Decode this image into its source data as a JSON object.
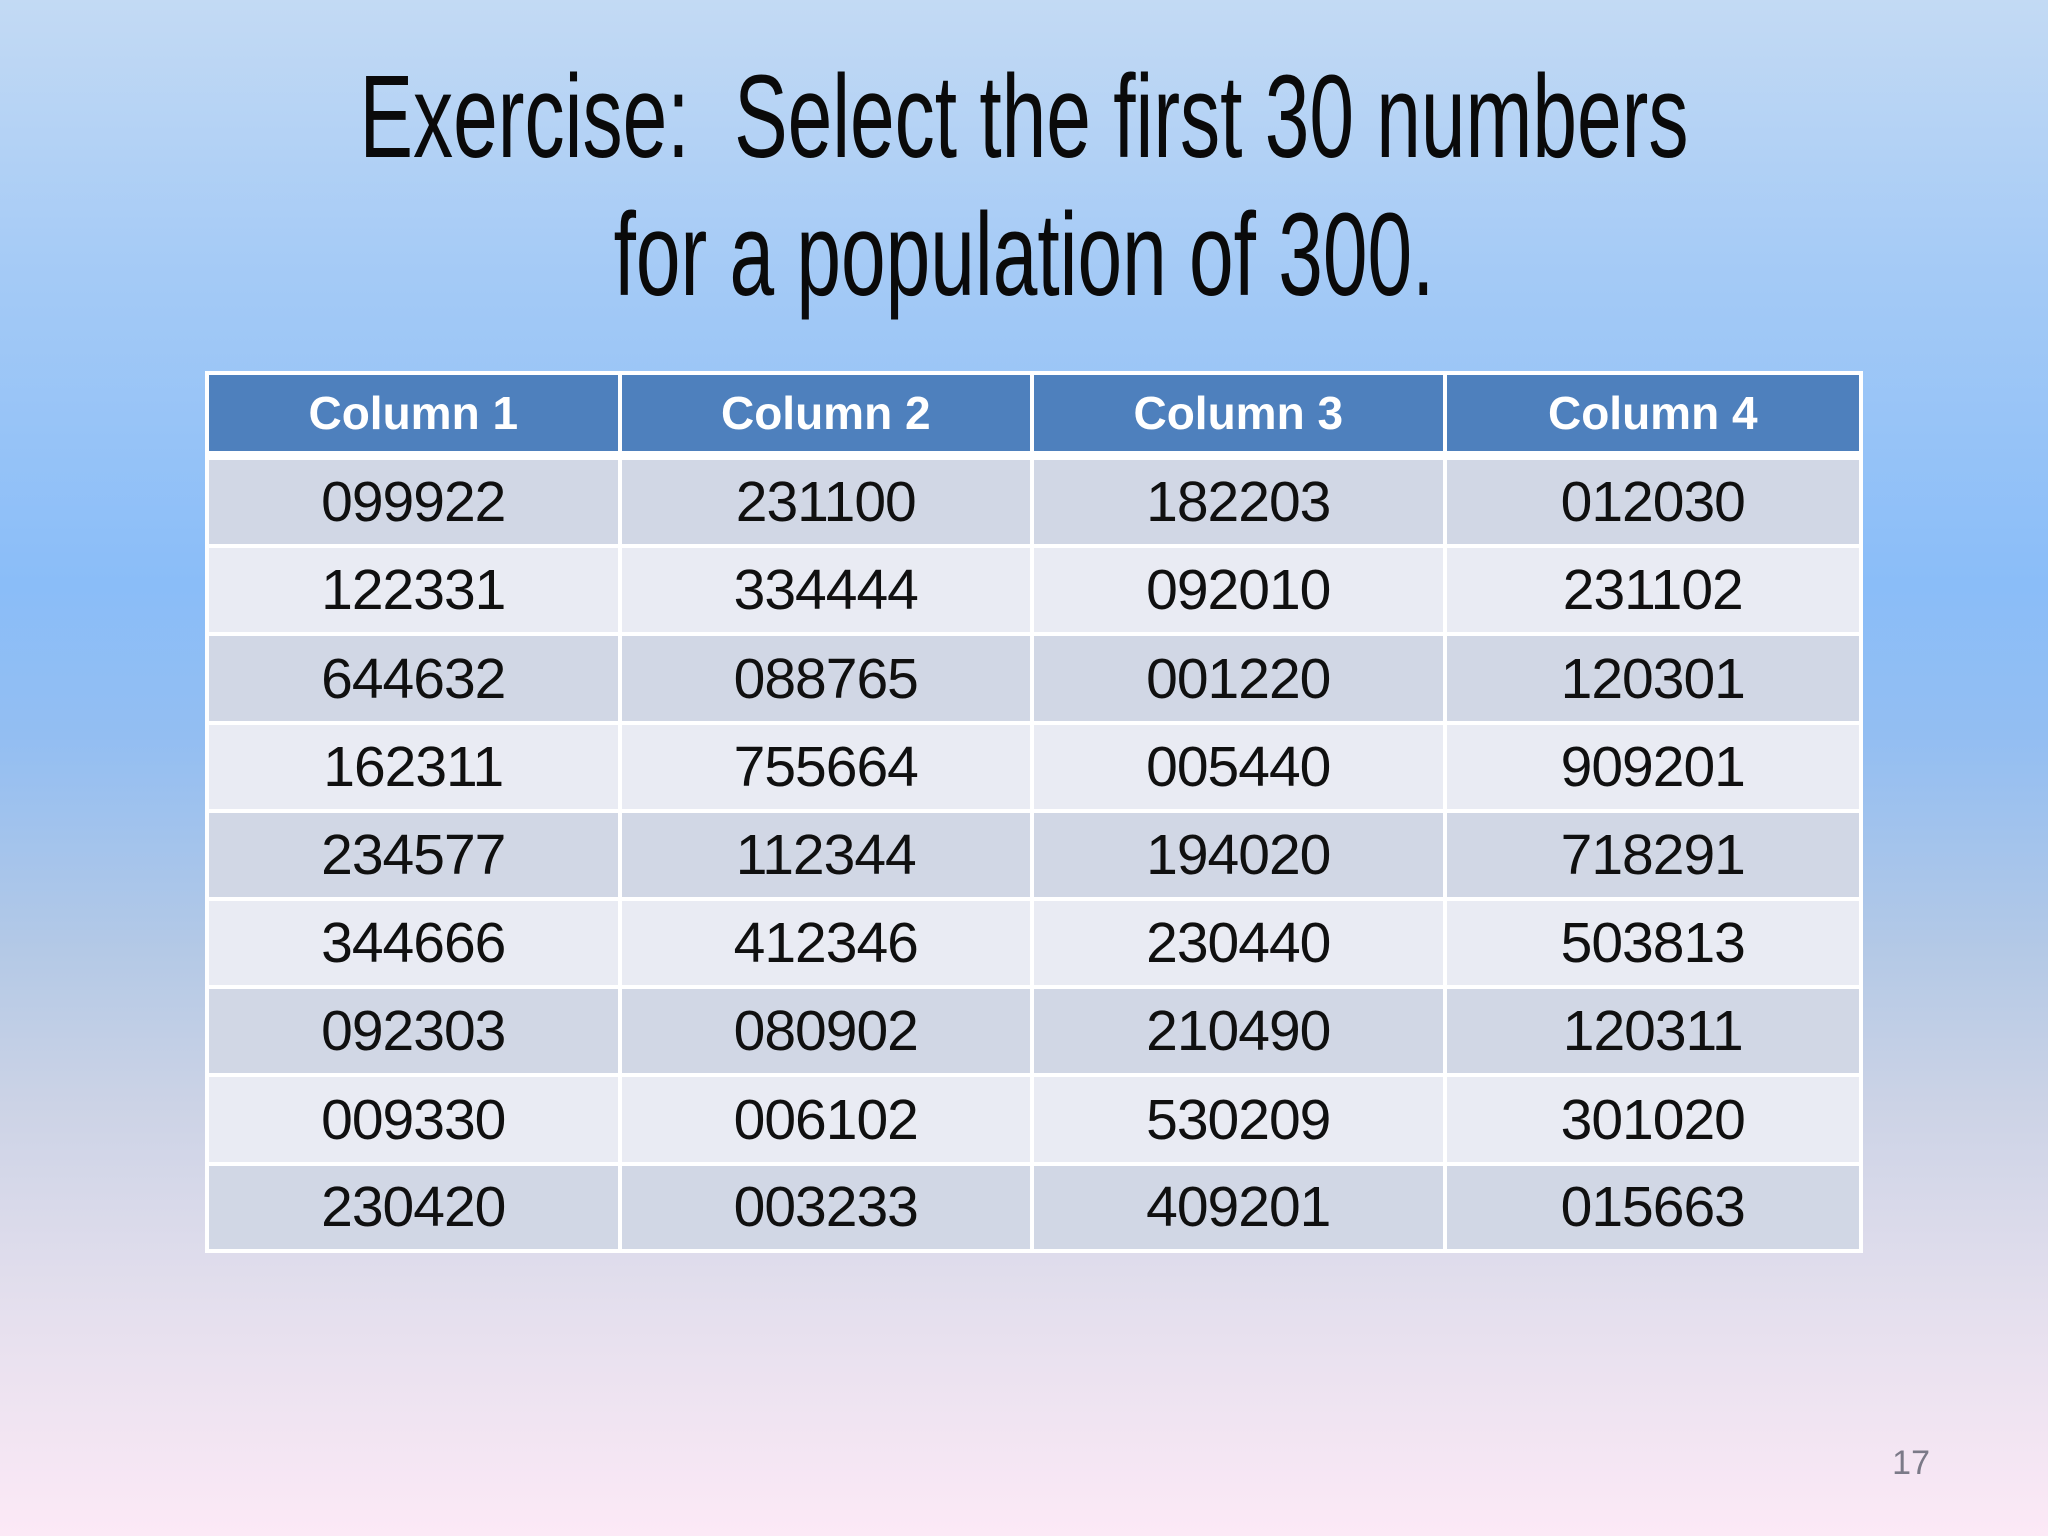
{
  "slide": {
    "title_line1": "Exercise:  Select the first 30 numbers",
    "title_line2": "for a population of 300.",
    "page_number": "17"
  },
  "table": {
    "headers": [
      "Column 1",
      "Column 2",
      "Column 3",
      "Column 4"
    ],
    "rows": [
      [
        "099922",
        "231100",
        "182203",
        "012030"
      ],
      [
        "122331",
        "334444",
        "092010",
        "231102"
      ],
      [
        "644632",
        "088765",
        "001220",
        "120301"
      ],
      [
        "162311",
        "755664",
        "005440",
        "909201"
      ],
      [
        "234577",
        "112344",
        "194020",
        "718291"
      ],
      [
        "344666",
        "412346",
        "230440",
        "503813"
      ],
      [
        "092303",
        "080902",
        "210490",
        "120311"
      ],
      [
        "009330",
        "006102",
        "530209",
        "301020"
      ],
      [
        "230420",
        "003233",
        "409201",
        "015663"
      ]
    ]
  },
  "colors": {
    "header_bg": "#4e80bd",
    "header_text": "#ffffff",
    "row_band_dark": "#d1d7e5",
    "row_band_light": "#e9ebf3",
    "cell_text": "#101010",
    "table_border": "#ffffff",
    "title_text": "#0a0a0a",
    "page_number_text": "#7b7a88",
    "background_top": "#c3daf4",
    "background_middle": "#8abdf8",
    "background_bottom": "#fce9f6"
  }
}
